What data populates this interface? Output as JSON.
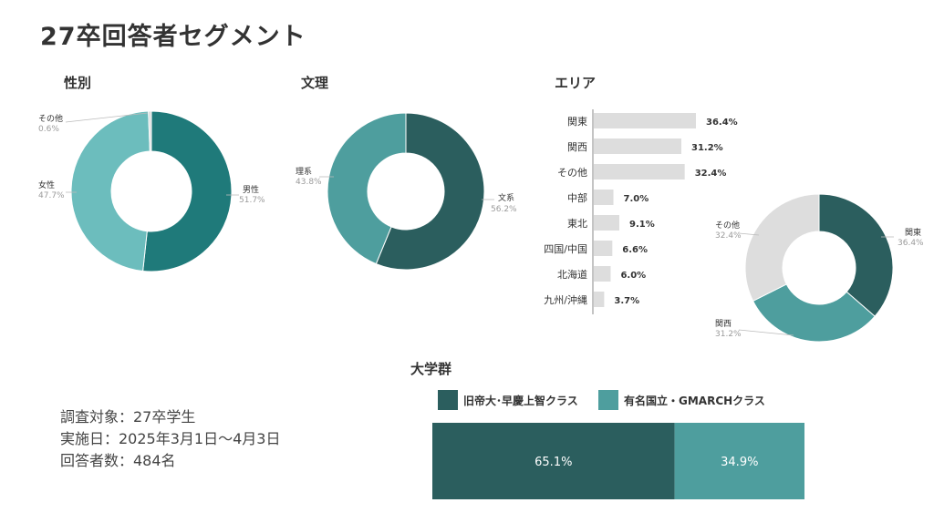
{
  "title": "27卒回答者セグメント",
  "colors": {
    "dark": "#2B5E5E",
    "teal_dark": "#1F7A7A",
    "teal_light": "#6CBDBD",
    "teal_mid": "#4E9E9E",
    "gray": "#DDDDDD",
    "label_gray": "#9A9A9A"
  },
  "info": {
    "line1": "調査対象：27卒学生",
    "line2": "実施日：2025年3月1日～4月3日",
    "line3": "回答者数：484名"
  },
  "chart_data": [
    {
      "type": "pie",
      "title": "性別",
      "categories": [
        "男性",
        "女性",
        "その他"
      ],
      "values": [
        51.7,
        47.7,
        0.6
      ],
      "labels": [
        "51.7%",
        "47.7%",
        "0.6%"
      ],
      "colors": [
        "#1F7A7A",
        "#6CBDBD",
        "#DDDDDD"
      ]
    },
    {
      "type": "pie",
      "title": "文理",
      "categories": [
        "文系",
        "理系"
      ],
      "values": [
        56.2,
        43.8
      ],
      "labels": [
        "56.2%",
        "43.8%"
      ],
      "colors": [
        "#2B5E5E",
        "#4E9E9E"
      ]
    },
    {
      "type": "bar",
      "title": "エリア",
      "orientation": "horizontal",
      "categories": [
        "関東",
        "関西",
        "その他",
        "中部",
        "東北",
        "四国/中国",
        "北海道",
        "九州/沖縄"
      ],
      "values": [
        36.4,
        31.2,
        32.4,
        7.0,
        9.1,
        6.6,
        6.0,
        3.7
      ],
      "labels": [
        "36.4%",
        "31.2%",
        "32.4%",
        "7.0%",
        "9.1%",
        "6.6%",
        "6.0%",
        "3.7%"
      ],
      "xlim": [
        0,
        36.4
      ]
    },
    {
      "type": "pie",
      "categories": [
        "関東",
        "関西",
        "その他"
      ],
      "values": [
        36.4,
        31.2,
        32.4
      ],
      "labels": [
        "36.4%",
        "31.2%",
        "32.4%"
      ],
      "colors": [
        "#2B5E5E",
        "#4E9E9E",
        "#DDDDDD"
      ]
    },
    {
      "type": "bar",
      "title": "大学群",
      "orientation": "horizontal-stacked",
      "series": [
        {
          "name": "旧帝大･早慶上智クラス",
          "values": [
            65.1
          ],
          "label": "65.1%",
          "color": "#2B5E5E"
        },
        {
          "name": "有名国立・GMARCHクラス",
          "values": [
            34.9
          ],
          "label": "34.9%",
          "color": "#4E9E9E"
        }
      ]
    }
  ]
}
